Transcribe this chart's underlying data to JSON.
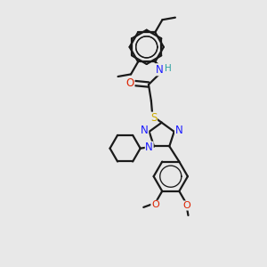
{
  "bg_color": "#e8e8e8",
  "bond_color": "#1a1a1a",
  "bond_width": 1.6,
  "atom_colors": {
    "N": "#1a1aff",
    "O": "#dd2200",
    "S": "#ccaa00",
    "H": "#2aa0a0",
    "C": "#1a1a1a"
  },
  "font_size": 8.5,
  "fig_size": [
    3.0,
    3.0
  ],
  "dpi": 100
}
